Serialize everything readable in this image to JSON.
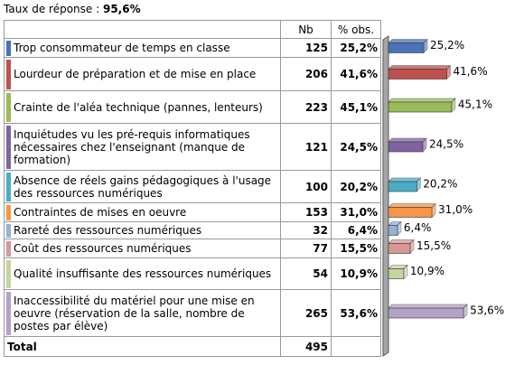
{
  "chart_data": {
    "type": "bar",
    "orientation": "horizontal",
    "response_rate_label": "Taux de réponse :",
    "response_rate": "95,6%",
    "columns": [
      "Nb",
      "% obs."
    ],
    "categories": [
      "Trop consommateur de temps en classe",
      "Lourdeur de préparation et de mise en place",
      "Crainte de l'aléa technique (pannes, lenteurs)",
      "Inquiétudes vu les pré-requis informatiques nécessaires chez l'enseignant (manque de formation)",
      "Absence de réels gains pédagogiques à l'usage des  ressources numériques",
      "Contraintes de mises en oeuvre",
      "Rareté des ressources numériques",
      "Coût des ressources numériques",
      "Qualité insuffisante des ressources numériques",
      "Inaccessibilité du matériel pour une mise en oeuvre (réservation de la salle, nombre de postes par élève)"
    ],
    "counts": [
      125,
      206,
      223,
      121,
      100,
      153,
      32,
      77,
      54,
      265
    ],
    "values": [
      25.2,
      41.6,
      45.1,
      24.5,
      20.2,
      31.0,
      6.4,
      15.5,
      10.9,
      53.6
    ],
    "value_labels": [
      "25,2%",
      "41,6%",
      "45,1%",
      "24,5%",
      "20,2%",
      "31,0%",
      "6,4%",
      "15,5%",
      "10,9%",
      "53,6%"
    ],
    "colors": [
      "#4a73b8",
      "#c0504d",
      "#9bbb59",
      "#8064a2",
      "#4bacc6",
      "#f79646",
      "#95b3d7",
      "#d99694",
      "#c3d69b",
      "#b3a2c7"
    ],
    "total_label": "Total",
    "total": 495
  }
}
